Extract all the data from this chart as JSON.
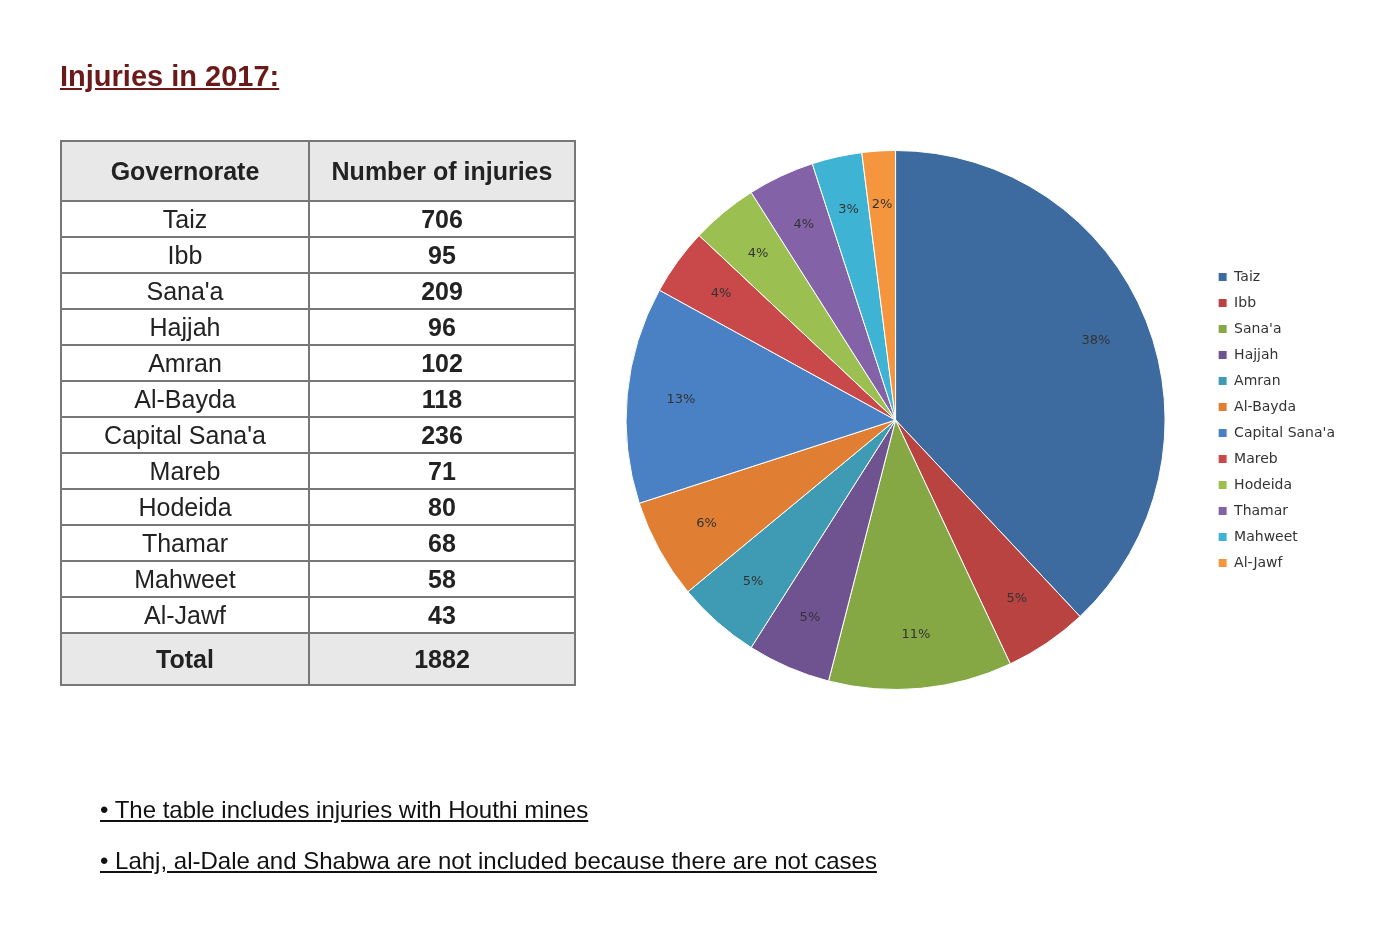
{
  "chart_data": {
    "type": "pie",
    "title": "Injuries in 2017:",
    "xlabel": "Governorate",
    "ylabel": "Number of injuries",
    "categories": [
      "Taiz",
      "Ibb",
      "Sana'a",
      "Hajjah",
      "Amran",
      "Al-Bayda",
      "Capital Sana'a",
      "Mareb",
      "Hodeida",
      "Thamar",
      "Mahweet",
      "Al-Jawf"
    ],
    "values": [
      38,
      5,
      11,
      5,
      5,
      6,
      13,
      4,
      4,
      4,
      3,
      2
    ],
    "colors": [
      "#3d6b9f",
      "#b84341",
      "#86a844",
      "#6f5391",
      "#3f9bb4",
      "#e07f33",
      "#4a80c4",
      "#c9494a",
      "#9cbf52",
      "#8462a8",
      "#3fb3d3",
      "#f5963f"
    ],
    "value_labels": [
      "38%",
      "5%",
      "11%",
      "5%",
      "5%",
      "6%",
      "13%",
      "4%",
      "4%",
      "4%",
      "3%",
      "2%"
    ],
    "legend": "right",
    "annotations": [
      "706",
      "95",
      "209",
      "96",
      "102",
      "118",
      "236",
      "71",
      "80",
      "68",
      "58",
      "43",
      "Total",
      "1882",
      "• The table includes injuries with Houthi mines",
      "• Lahj, al-Dale and Shabwa are not included because there are not cases"
    ]
  }
}
